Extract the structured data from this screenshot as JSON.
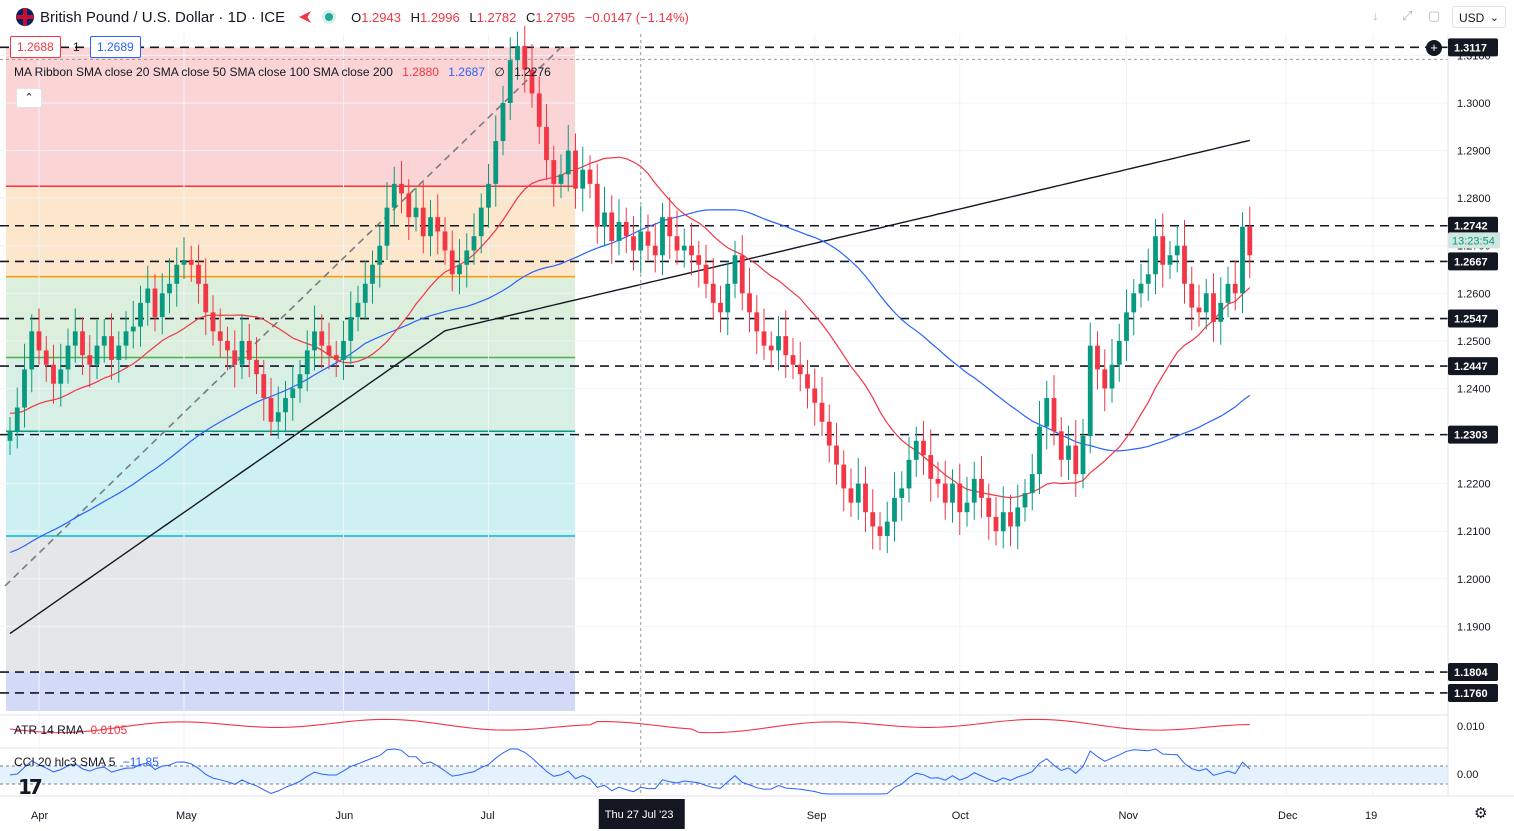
{
  "header": {
    "title": "British Pound / U.S. Dollar · 1D · ICE",
    "open_label": "O",
    "open": "1.2943",
    "high_label": "H",
    "high": "1.2996",
    "low_label": "L",
    "low": "1.2782",
    "close_label": "C",
    "close": "1.2795",
    "change": "−0.0147 (−1.14%)"
  },
  "trade": {
    "sell": "1.2688",
    "spread": "1",
    "buy": "1.2689"
  },
  "ma_legend": {
    "label": "MA Ribbon SMA close 20 SMA close 50 SMA close 100 SMA close 200",
    "v20": "1.2880",
    "v50": "1.2687",
    "v100": "∅",
    "v200": "1.2276"
  },
  "currency": "USD",
  "atr_label": "ATR 14 RMA",
  "atr_value": "0.0105",
  "cci_label": "CCI 20 hlc3 SMA 5",
  "cci_value": "−11.85",
  "colors": {
    "up": "#089981",
    "down": "#f23645",
    "sma20": "#f23645",
    "sma50": "#2962ff",
    "sma200": "#131722"
  },
  "chart_data": {
    "type": "candlestick",
    "title": "British Pound / U.S. Dollar",
    "timeframe": "1D",
    "ylim": [
      1.172,
      1.3145
    ],
    "x_labels": [
      {
        "text": "Apr",
        "i": 4
      },
      {
        "text": "May",
        "i": 24
      },
      {
        "text": "Jun",
        "i": 46
      },
      {
        "text": "Jul",
        "i": 66
      },
      {
        "text": "Thu 27 Jul '23",
        "i": 84,
        "highlight": true
      },
      {
        "text": "Sep",
        "i": 111
      },
      {
        "text": "Oct",
        "i": 131
      },
      {
        "text": "Nov",
        "i": 154
      },
      {
        "text": "Dec",
        "i": 176
      },
      {
        "text": "19",
        "i": 188
      }
    ],
    "price_ticks": [
      "1.1900",
      "1.2000",
      "1.2100",
      "1.2200",
      "1.2300",
      "1.2400",
      "1.2500",
      "1.2600",
      "1.2700",
      "1.2800",
      "1.2900",
      "1.3000",
      "1.3100"
    ],
    "levels": [
      "1.3117",
      "1.2742",
      "1.2667",
      "1.2547",
      "1.2447",
      "1.2303",
      "1.1804",
      "1.1760"
    ],
    "last_price": "1.2688",
    "countdown": "13:23:54",
    "close": [
      1.231,
      1.236,
      1.244,
      1.252,
      1.248,
      1.245,
      1.241,
      1.244,
      1.249,
      1.252,
      1.247,
      1.245,
      1.249,
      1.251,
      1.246,
      1.249,
      1.252,
      1.253,
      1.258,
      1.261,
      1.255,
      1.26,
      1.262,
      1.266,
      1.267,
      1.266,
      1.262,
      1.256,
      1.252,
      1.25,
      1.248,
      1.245,
      1.25,
      1.246,
      1.243,
      1.238,
      1.233,
      1.235,
      1.238,
      1.24,
      1.243,
      1.248,
      1.252,
      1.249,
      1.247,
      1.246,
      1.25,
      1.255,
      1.258,
      1.262,
      1.266,
      1.27,
      1.278,
      1.283,
      1.281,
      1.276,
      1.278,
      1.272,
      1.276,
      1.273,
      1.269,
      1.264,
      1.266,
      1.269,
      1.272,
      1.278,
      1.283,
      1.292,
      1.3,
      1.309,
      1.312,
      1.307,
      1.302,
      1.295,
      1.288,
      1.283,
      1.285,
      1.29,
      1.282,
      1.286,
      1.283,
      1.274,
      1.277,
      1.271,
      1.275,
      1.272,
      1.269,
      1.273,
      1.27,
      1.268,
      1.276,
      1.272,
      1.269,
      1.27,
      1.268,
      1.266,
      1.262,
      1.258,
      1.256,
      1.262,
      1.268,
      1.26,
      1.256,
      1.252,
      1.249,
      1.248,
      1.251,
      1.247,
      1.245,
      1.243,
      1.24,
      1.237,
      1.233,
      1.228,
      1.224,
      1.219,
      1.216,
      1.22,
      1.214,
      1.211,
      1.209,
      1.212,
      1.217,
      1.219,
      1.225,
      1.229,
      1.226,
      1.221,
      1.22,
      1.216,
      1.22,
      1.214,
      1.216,
      1.221,
      1.217,
      1.213,
      1.21,
      1.214,
      1.211,
      1.215,
      1.218,
      1.222,
      1.232,
      1.238,
      1.231,
      1.225,
      1.228,
      1.222,
      1.23,
      1.249,
      1.244,
      1.24,
      1.245,
      1.25,
      1.256,
      1.26,
      1.262,
      1.264,
      1.272,
      1.266,
      1.268,
      1.27,
      1.262,
      1.257,
      1.256,
      1.26,
      1.254,
      1.258,
      1.262,
      1.26,
      1.274,
      1.268
    ]
  }
}
